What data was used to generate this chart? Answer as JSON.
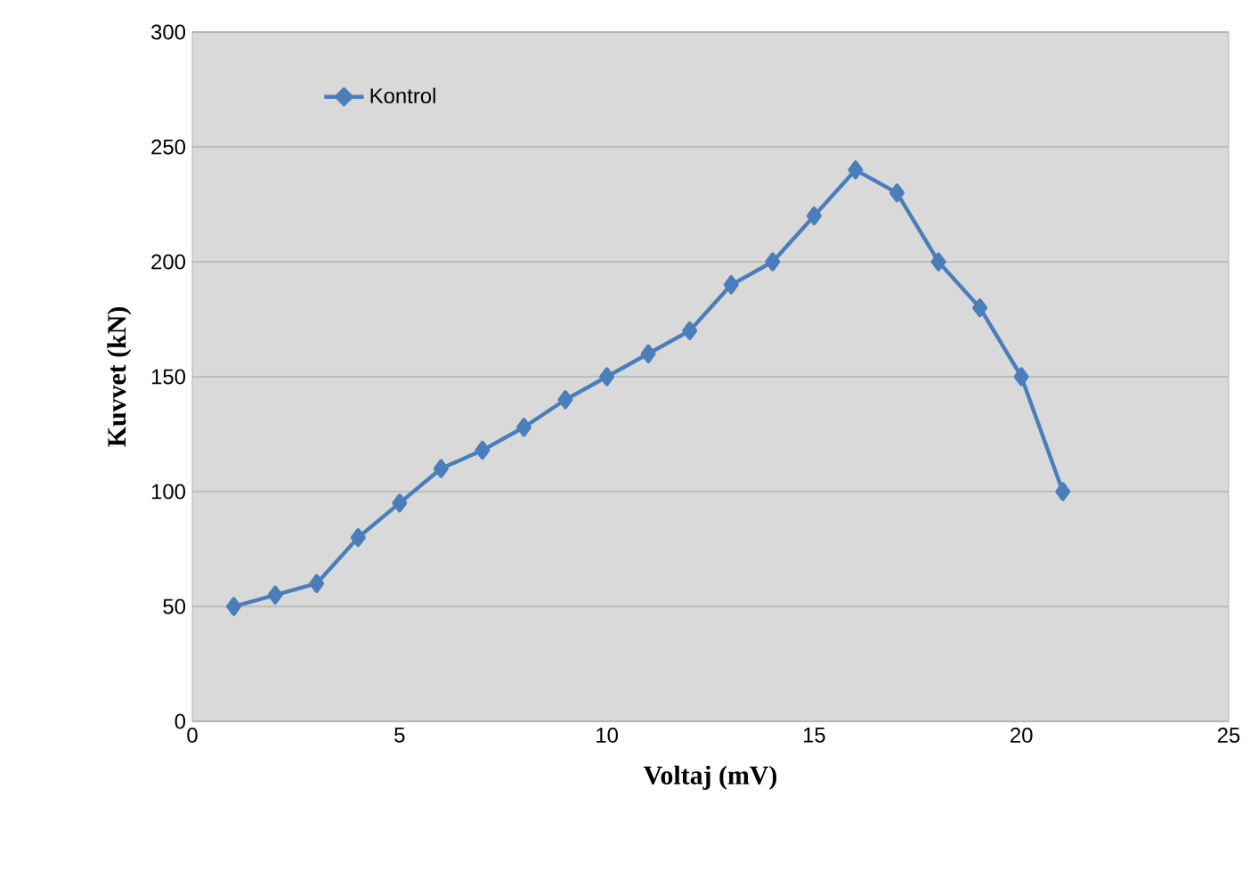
{
  "chart_data": {
    "type": "line",
    "xlabel": "Voltaj (mV)",
    "ylabel": "Kuvvet (kN)",
    "x": [
      1,
      2,
      3,
      4,
      5,
      6,
      7,
      8,
      9,
      10,
      11,
      12,
      13,
      14,
      15,
      16,
      17,
      18,
      19,
      20,
      21
    ],
    "series": [
      {
        "name": "Kontrol",
        "color": "#4a7ebb",
        "values": [
          50,
          55,
          60,
          80,
          95,
          110,
          118,
          128,
          140,
          150,
          160,
          170,
          190,
          200,
          220,
          240,
          230,
          200,
          180,
          150,
          100
        ]
      }
    ],
    "xlim": [
      0,
      25
    ],
    "xticks": [
      0,
      5,
      10,
      15,
      20,
      25
    ],
    "ylim": [
      0,
      300
    ],
    "yticks": [
      0,
      50,
      100,
      150,
      200,
      250,
      300
    ],
    "grid": "y",
    "legend": "top left",
    "marker": "diamond",
    "line_style": "solid"
  }
}
